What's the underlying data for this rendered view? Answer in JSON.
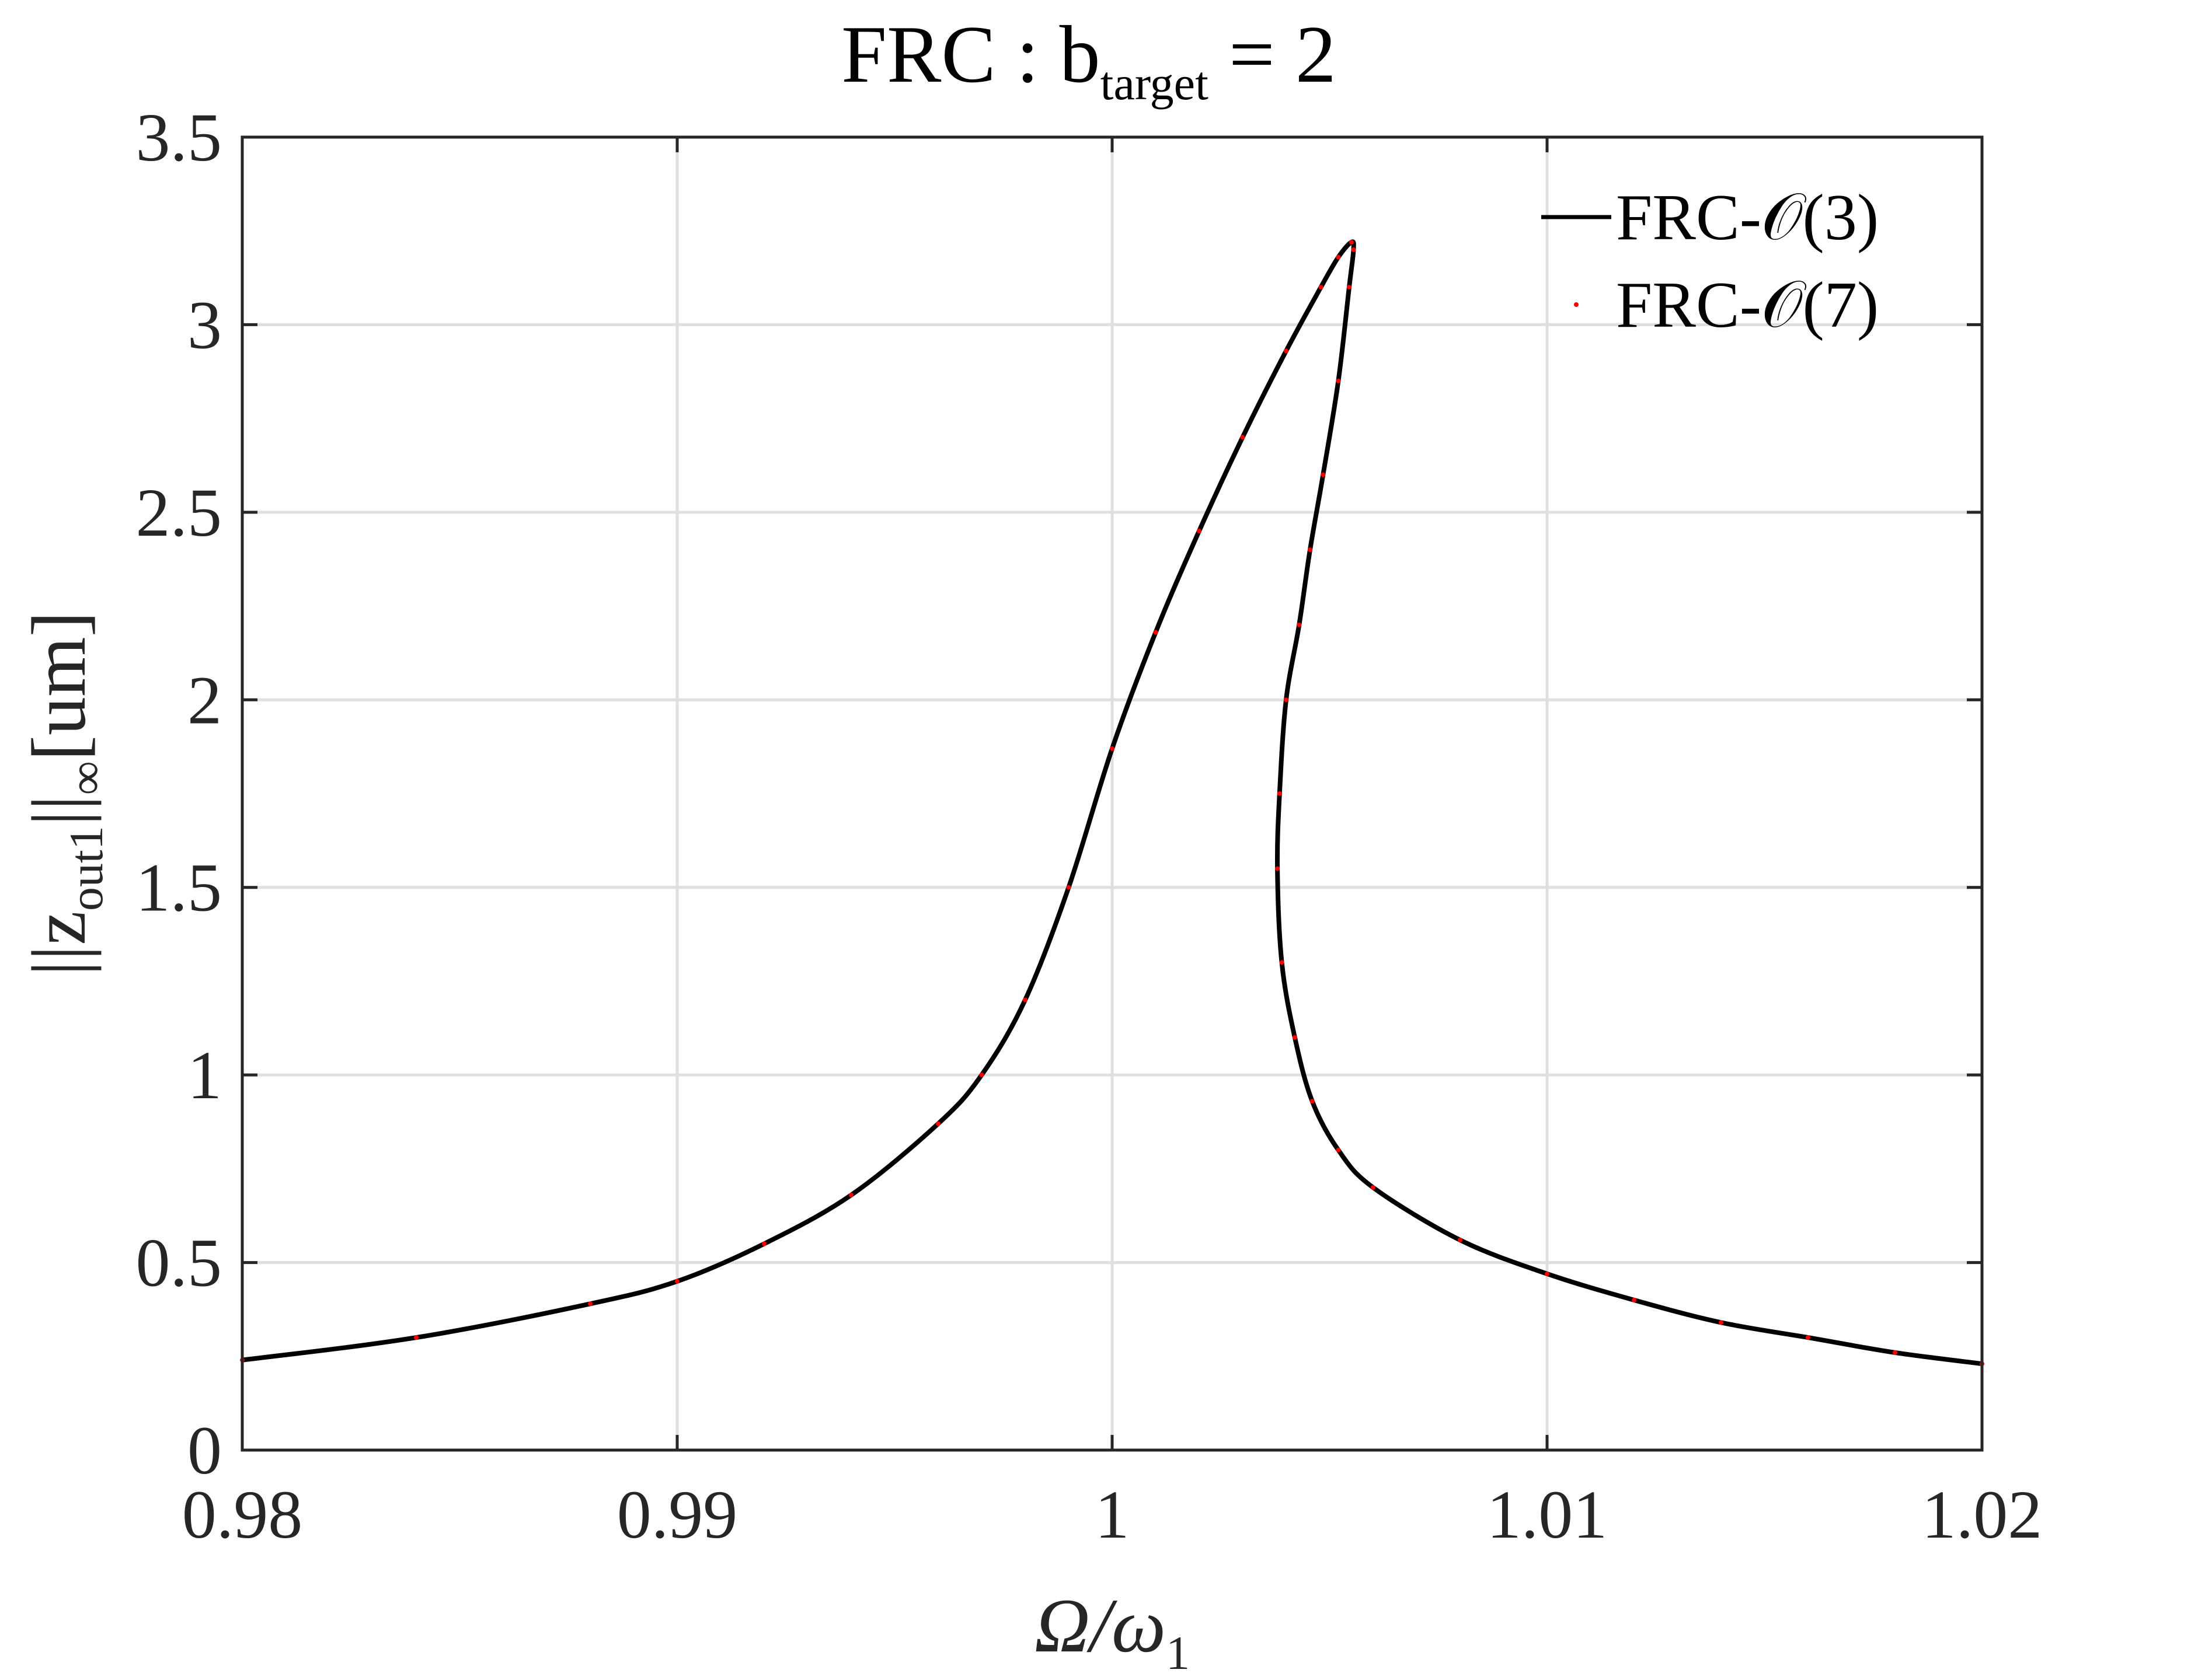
{
  "chart_data": {
    "type": "line",
    "title": {
      "base": "FRC : b",
      "subscript": "target",
      "suffix": " = 2"
    },
    "xlabel": {
      "base": "Ω/ω",
      "subscript": "1"
    },
    "ylabel": {
      "prefix": "||z",
      "subscript": "out1",
      "middle": "||",
      "subscript2": "∞",
      "suffix": "[um]"
    },
    "xlim": [
      0.98,
      1.02
    ],
    "ylim": [
      0,
      3.5
    ],
    "xticks": [
      0.98,
      0.99,
      1.0,
      1.01,
      1.02
    ],
    "xtick_labels": [
      "0.98",
      "0.99",
      "1",
      "1.01",
      "1.02"
    ],
    "yticks": [
      0,
      0.5,
      1,
      1.5,
      2,
      2.5,
      3,
      3.5
    ],
    "ytick_labels": [
      "0",
      "0.5",
      "1",
      "1.5",
      "2",
      "2.5",
      "3",
      "3.5"
    ],
    "grid": true,
    "legend_position": "top-right",
    "series": [
      {
        "name": "FRC-𝒪(3)",
        "style": "solid-line",
        "color": "#000000",
        "x": [
          0.98,
          0.984,
          0.988,
          0.99,
          0.992,
          0.994,
          0.996,
          0.997,
          0.998,
          0.999,
          1.0,
          1.001,
          1.002,
          1.003,
          1.004,
          1.0048,
          1.0052,
          1.0055,
          1.00555,
          1.00545,
          1.0052,
          1.00485,
          1.00455,
          1.0043,
          1.004,
          1.00385,
          1.0038,
          1.0039,
          1.0042,
          1.0046,
          1.0052,
          1.006,
          1.008,
          1.01,
          1.012,
          1.014,
          1.016,
          1.018,
          1.02
        ],
        "y": [
          0.24,
          0.3,
          0.39,
          0.45,
          0.55,
          0.68,
          0.87,
          1.0,
          1.2,
          1.5,
          1.87,
          2.18,
          2.45,
          2.7,
          2.93,
          3.1,
          3.18,
          3.22,
          3.2,
          3.1,
          2.85,
          2.6,
          2.4,
          2.2,
          2.0,
          1.75,
          1.55,
          1.3,
          1.1,
          0.93,
          0.8,
          0.7,
          0.56,
          0.47,
          0.4,
          0.34,
          0.3,
          0.26,
          0.23
        ]
      },
      {
        "name": "FRC-𝒪(7)",
        "style": "dots",
        "color": "#ff0000",
        "x": [
          0.98,
          0.984,
          0.988,
          0.99,
          0.992,
          0.994,
          0.996,
          0.997,
          0.998,
          0.999,
          1.0,
          1.001,
          1.002,
          1.003,
          1.004,
          1.0048,
          1.0052,
          1.0055,
          1.00555,
          1.00545,
          1.0052,
          1.00485,
          1.00455,
          1.0043,
          1.004,
          1.00385,
          1.0038,
          1.0039,
          1.0042,
          1.0046,
          1.0052,
          1.006,
          1.008,
          1.01,
          1.012,
          1.014,
          1.016,
          1.018,
          1.02
        ],
        "y": [
          0.24,
          0.3,
          0.39,
          0.45,
          0.55,
          0.68,
          0.87,
          1.0,
          1.2,
          1.5,
          1.87,
          2.18,
          2.45,
          2.7,
          2.93,
          3.1,
          3.18,
          3.22,
          3.2,
          3.1,
          2.85,
          2.6,
          2.4,
          2.2,
          2.0,
          1.75,
          1.55,
          1.3,
          1.1,
          0.93,
          0.8,
          0.7,
          0.56,
          0.47,
          0.4,
          0.34,
          0.3,
          0.26,
          0.23
        ]
      }
    ]
  }
}
